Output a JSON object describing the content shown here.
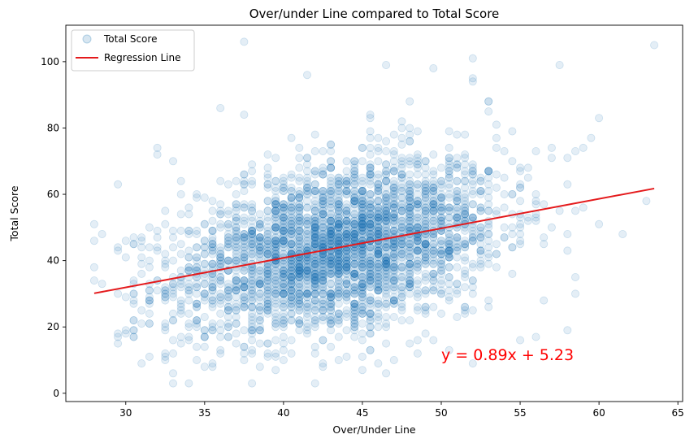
{
  "chart_data": {
    "type": "scatter",
    "title": "Over/under Line compared to Total Score",
    "xlabel": "Over/Under Line",
    "ylabel": "Total Score",
    "xlim": [
      26.2,
      65.3
    ],
    "ylim": [
      -2.5,
      111
    ],
    "xticks": [
      30,
      35,
      40,
      45,
      50,
      55,
      60,
      65
    ],
    "yticks": [
      0,
      20,
      40,
      60,
      80,
      100
    ],
    "grid": false,
    "legend_position": "top-left",
    "series": [
      {
        "name": "Total Score",
        "kind": "scatter",
        "color": "#1f77b4",
        "alpha": 0.12,
        "approx_count": 3200,
        "x_distribution": {
          "min": 28,
          "max": 63.5,
          "mean": 43.5,
          "sd": 5.2
        },
        "residual_sd": 12.5,
        "sample_points": [
          [
            28,
            38
          ],
          [
            28,
            34
          ],
          [
            29.5,
            63
          ],
          [
            30,
            19
          ],
          [
            30.5,
            19
          ],
          [
            31,
            9
          ],
          [
            31,
            36
          ],
          [
            32,
            72
          ],
          [
            32,
            74
          ],
          [
            33,
            3
          ],
          [
            33,
            6
          ],
          [
            34,
            3
          ],
          [
            36,
            86
          ],
          [
            37.5,
            106
          ],
          [
            38,
            3
          ],
          [
            41.5,
            96
          ],
          [
            46.5,
            99
          ],
          [
            49.5,
            98
          ],
          [
            52,
            101
          ],
          [
            52,
            95
          ],
          [
            53,
            88
          ],
          [
            55,
            16
          ],
          [
            57.5,
            99
          ],
          [
            58,
            19
          ],
          [
            58.5,
            30
          ],
          [
            59.5,
            77
          ],
          [
            60,
            83
          ],
          [
            60,
            51
          ],
          [
            61.5,
            48
          ],
          [
            63,
            58
          ],
          [
            63.5,
            105
          ],
          [
            48,
            15
          ],
          [
            51,
            23
          ]
        ]
      },
      {
        "name": "Regression Line",
        "kind": "line",
        "color": "#e41a1c",
        "slope": 0.89,
        "intercept": 5.23,
        "x": [
          28,
          63.5
        ]
      }
    ],
    "annotations": [
      {
        "text": "y = 0.89x + 5.23",
        "x": 50,
        "y": 10,
        "color": "#ff0000"
      }
    ]
  }
}
